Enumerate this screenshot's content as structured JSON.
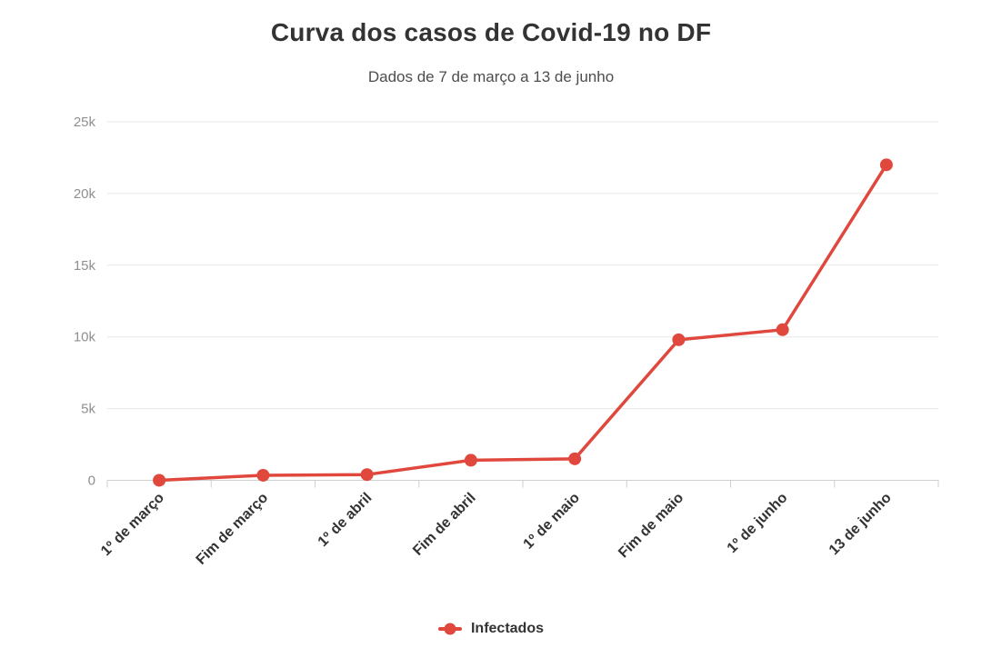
{
  "header": {
    "title": "Curva dos casos de Covid-19 no DF",
    "subtitle": "Dados de 7 de março a 13 de junho"
  },
  "legend": {
    "items": [
      {
        "label": "Infectados",
        "color": "#e0483e"
      }
    ]
  },
  "chart_data": {
    "type": "line",
    "title": "Curva dos casos de Covid-19 no DF",
    "subtitle": "Dados de 7 de março a 13 de junho",
    "categories": [
      "1º de março",
      "Fim de março",
      "1º de abril",
      "Fim de abril",
      "1º de maio",
      "Fim de maio",
      "1º de junho",
      "13 de junho"
    ],
    "series": [
      {
        "name": "Infectados",
        "color": "#e0483e",
        "values": [
          1,
          350,
          400,
          1400,
          1500,
          9800,
          10500,
          22000
        ]
      }
    ],
    "xlabel": "",
    "ylabel": "",
    "ylim": [
      0,
      25000
    ],
    "yticks": [
      0,
      5000,
      10000,
      15000,
      20000,
      25000
    ],
    "ytick_labels": [
      "0",
      "5k",
      "10k",
      "15k",
      "20k",
      "25k"
    ],
    "grid": true,
    "legend_position": "bottom",
    "x_label_rotation": -45
  },
  "colors": {
    "accent": "#e0483e",
    "title": "#333333",
    "subtitle": "#4d4d4d",
    "axis_label": "#8f8f8f",
    "grid": "#e7e7e7",
    "axis": "#cfcfcf",
    "background": "#ffffff"
  }
}
